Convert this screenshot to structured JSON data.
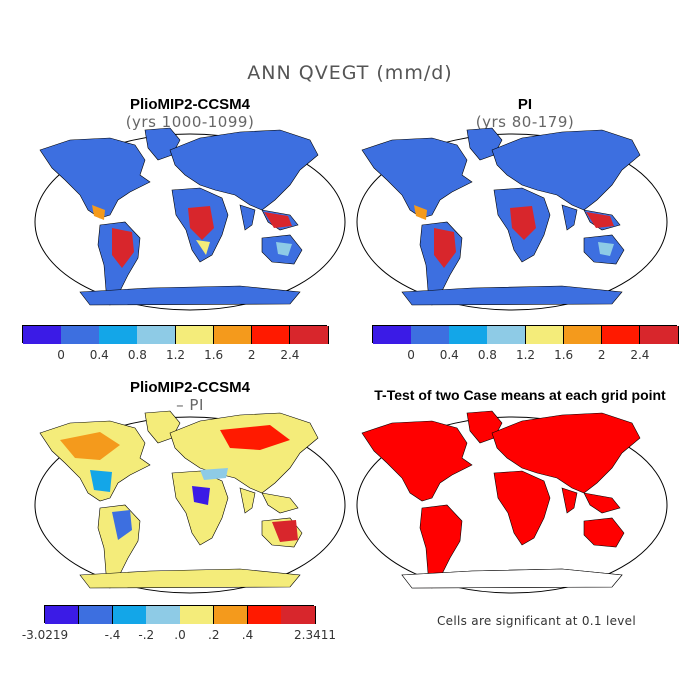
{
  "figure": {
    "title": "ANN QVEGT (mm/d)",
    "footnote": "Cells are significant at 0.1 level"
  },
  "colors": {
    "continent_outline": "#000000",
    "significance": "#ff0000"
  },
  "chart_data": [
    {
      "type": "heatmap",
      "panel": "top-left",
      "title": "PlioMIP2-CCSM4",
      "subtitle": "(yrs 1000-1099)",
      "colorbar": {
        "colors": [
          "#3b1be6",
          "#3d6fe0",
          "#13a6e8",
          "#8ecbe6",
          "#f4ec7a",
          "#f49a1c",
          "#ff1a00",
          "#d8262c"
        ],
        "tick_labels": [
          "0",
          "0.4",
          "0.8",
          "1.2",
          "1.6",
          "2",
          "2.4"
        ]
      }
    },
    {
      "type": "heatmap",
      "panel": "top-right",
      "title": "PI",
      "subtitle": "(yrs 80-179)",
      "colorbar": {
        "colors": [
          "#3b1be6",
          "#3d6fe0",
          "#13a6e8",
          "#8ecbe6",
          "#f4ec7a",
          "#f49a1c",
          "#ff1a00",
          "#d8262c"
        ],
        "tick_labels": [
          "0",
          "0.4",
          "0.8",
          "1.2",
          "1.6",
          "2",
          "2.4"
        ]
      }
    },
    {
      "type": "heatmap",
      "panel": "bottom-left",
      "title": "PlioMIP2-CCSM4",
      "subtitle": "– PI",
      "colorbar": {
        "colors": [
          "#3b1be6",
          "#3d6fe0",
          "#13a6e8",
          "#8ecbe6",
          "#f4ec7a",
          "#f49a1c",
          "#ff1a00",
          "#d8262c"
        ],
        "tick_labels": [
          "-3.0219",
          "-.4",
          "-.2",
          ".0",
          ".2",
          ".4",
          "2.3411"
        ]
      }
    },
    {
      "type": "heatmap",
      "panel": "bottom-right",
      "title": "T-Test of two Case means at each grid point"
    }
  ]
}
